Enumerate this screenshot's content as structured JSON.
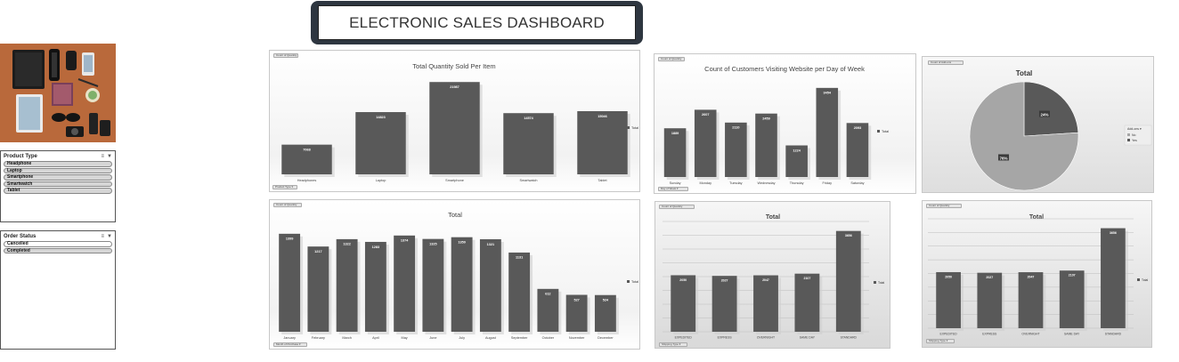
{
  "header": {
    "title": "ELECTRONIC SALES DASHBOARD"
  },
  "slicers": {
    "product_type": {
      "title": "Product Type",
      "items": [
        {
          "label": "Headphone",
          "selected": true
        },
        {
          "label": "Laptop",
          "selected": true
        },
        {
          "label": "Smartphone",
          "selected": true
        },
        {
          "label": "Smartwatch",
          "selected": true
        },
        {
          "label": "Tablet",
          "selected": true
        }
      ]
    },
    "order_status": {
      "title": "Order Status",
      "items": [
        {
          "label": "Cancelled",
          "selected": false
        },
        {
          "label": "Completed",
          "selected": true
        }
      ]
    }
  },
  "colors": {
    "bar": "#595959",
    "pie_dark": "#595959",
    "pie_light": "#a6a6a6"
  },
  "chart_data": [
    {
      "id": "qty-per-item",
      "type": "bar",
      "title": "Total Quantity Sold Per Item",
      "categories": [
        "Headphones",
        "Laptop",
        "Smartphone",
        "Smartwatch",
        "Tablet"
      ],
      "values": [
        7068,
        14823,
        21987,
        14574,
        15046
      ],
      "legend": "Total",
      "ylim": [
        0,
        25000
      ],
      "field_buttons": [
        "Count of Quantity",
        "Product Type"
      ]
    },
    {
      "id": "customers-per-day",
      "type": "bar",
      "title": "Count of Customers Visiting Website per Day of Week",
      "categories": [
        "Sunday",
        "Monday",
        "Tuesday",
        "Wednesday",
        "Thursday",
        "Friday",
        "Saturday"
      ],
      "values": [
        1889,
        2607,
        2110,
        2459,
        1224,
        3454,
        2093
      ],
      "legend": "Total",
      "ylim": [
        0,
        4000
      ],
      "field_buttons": [
        "Count of Quantity",
        "Day of Week"
      ]
    },
    {
      "id": "addon-pie",
      "type": "pie",
      "title": "Total",
      "slices": [
        {
          "label": "No",
          "value": 76
        },
        {
          "label": "Yes",
          "value": 24
        }
      ],
      "slice_labels": [
        "76%",
        "24%"
      ],
      "legend_title": "Add-ons",
      "field_buttons": [
        "Count of Add-ons"
      ]
    },
    {
      "id": "qty-per-month",
      "type": "bar",
      "title": "Total",
      "categories": [
        "January",
        "February",
        "March",
        "April",
        "May",
        "June",
        "July",
        "August",
        "September",
        "October",
        "November",
        "December"
      ],
      "values": [
        1399,
        1217,
        1322,
        1283,
        1374,
        1325,
        1350,
        1321,
        1131,
        612,
        527,
        524
      ],
      "legend": "Total",
      "ylim": [
        0,
        1600
      ],
      "field_buttons": [
        "Count of Quantity",
        "Month of Purchase"
      ]
    },
    {
      "id": "shipping-type",
      "type": "bar",
      "title": "Total",
      "categories": [
        "EXPEDITED",
        "EXPRESS",
        "OVERNIGHT",
        "SAME DAY",
        "STANDARD"
      ],
      "values": [
        2050,
        2027,
        2047,
        2107,
        3656
      ],
      "legend": "Total",
      "ylim": [
        0,
        4000
      ],
      "field_buttons": [
        "Count of Quantity",
        "Shipping Type"
      ]
    },
    {
      "id": "shipping-type-2",
      "type": "bar",
      "title": "Total",
      "categories": [
        "EXPEDITED",
        "EXPRESS",
        "OVERNIGHT",
        "SAME DAY",
        "STANDARD"
      ],
      "values": [
        2050,
        2027,
        2047,
        2107,
        3656
      ],
      "legend": "Total",
      "ylim": [
        0,
        4000
      ],
      "field_buttons": [
        "Count of Quantity",
        "Shipping Type"
      ]
    }
  ]
}
